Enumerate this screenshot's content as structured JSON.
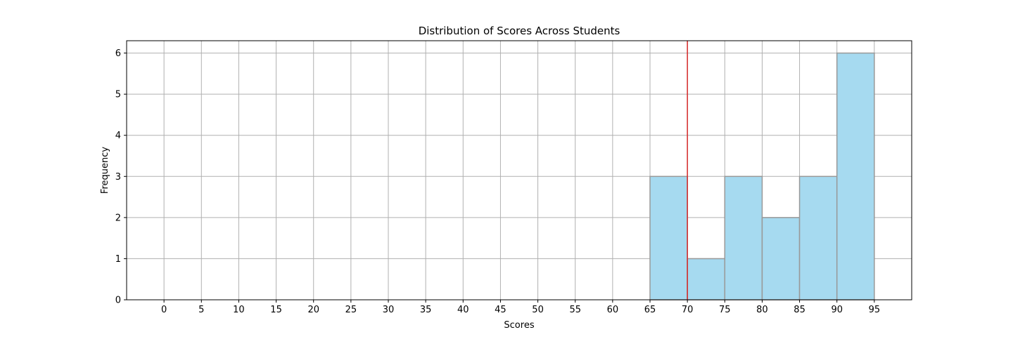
{
  "chart_data": {
    "type": "bar",
    "title": "Distribution of Scores Across Students",
    "xlabel": "Scores",
    "ylabel": "Frequency",
    "xlim": [
      -5,
      100
    ],
    "ylim": [
      0,
      6.3
    ],
    "x_ticks": [
      0,
      5,
      10,
      15,
      20,
      25,
      30,
      35,
      40,
      45,
      50,
      55,
      60,
      65,
      70,
      75,
      80,
      85,
      90,
      95
    ],
    "y_ticks": [
      0,
      1,
      2,
      3,
      4,
      5,
      6
    ],
    "bins": [
      {
        "start": 65,
        "end": 70,
        "count": 3
      },
      {
        "start": 70,
        "end": 75,
        "count": 1
      },
      {
        "start": 75,
        "end": 80,
        "count": 3
      },
      {
        "start": 80,
        "end": 85,
        "count": 2
      },
      {
        "start": 85,
        "end": 90,
        "count": 3
      },
      {
        "start": 90,
        "end": 95,
        "count": 6
      }
    ],
    "reference_line": {
      "x": 70,
      "color": "#d62728"
    },
    "grid": true,
    "colors": {
      "bar_fill": "#a6daf0",
      "bar_edge": "#999999",
      "grid": "#b0b0b0"
    }
  }
}
